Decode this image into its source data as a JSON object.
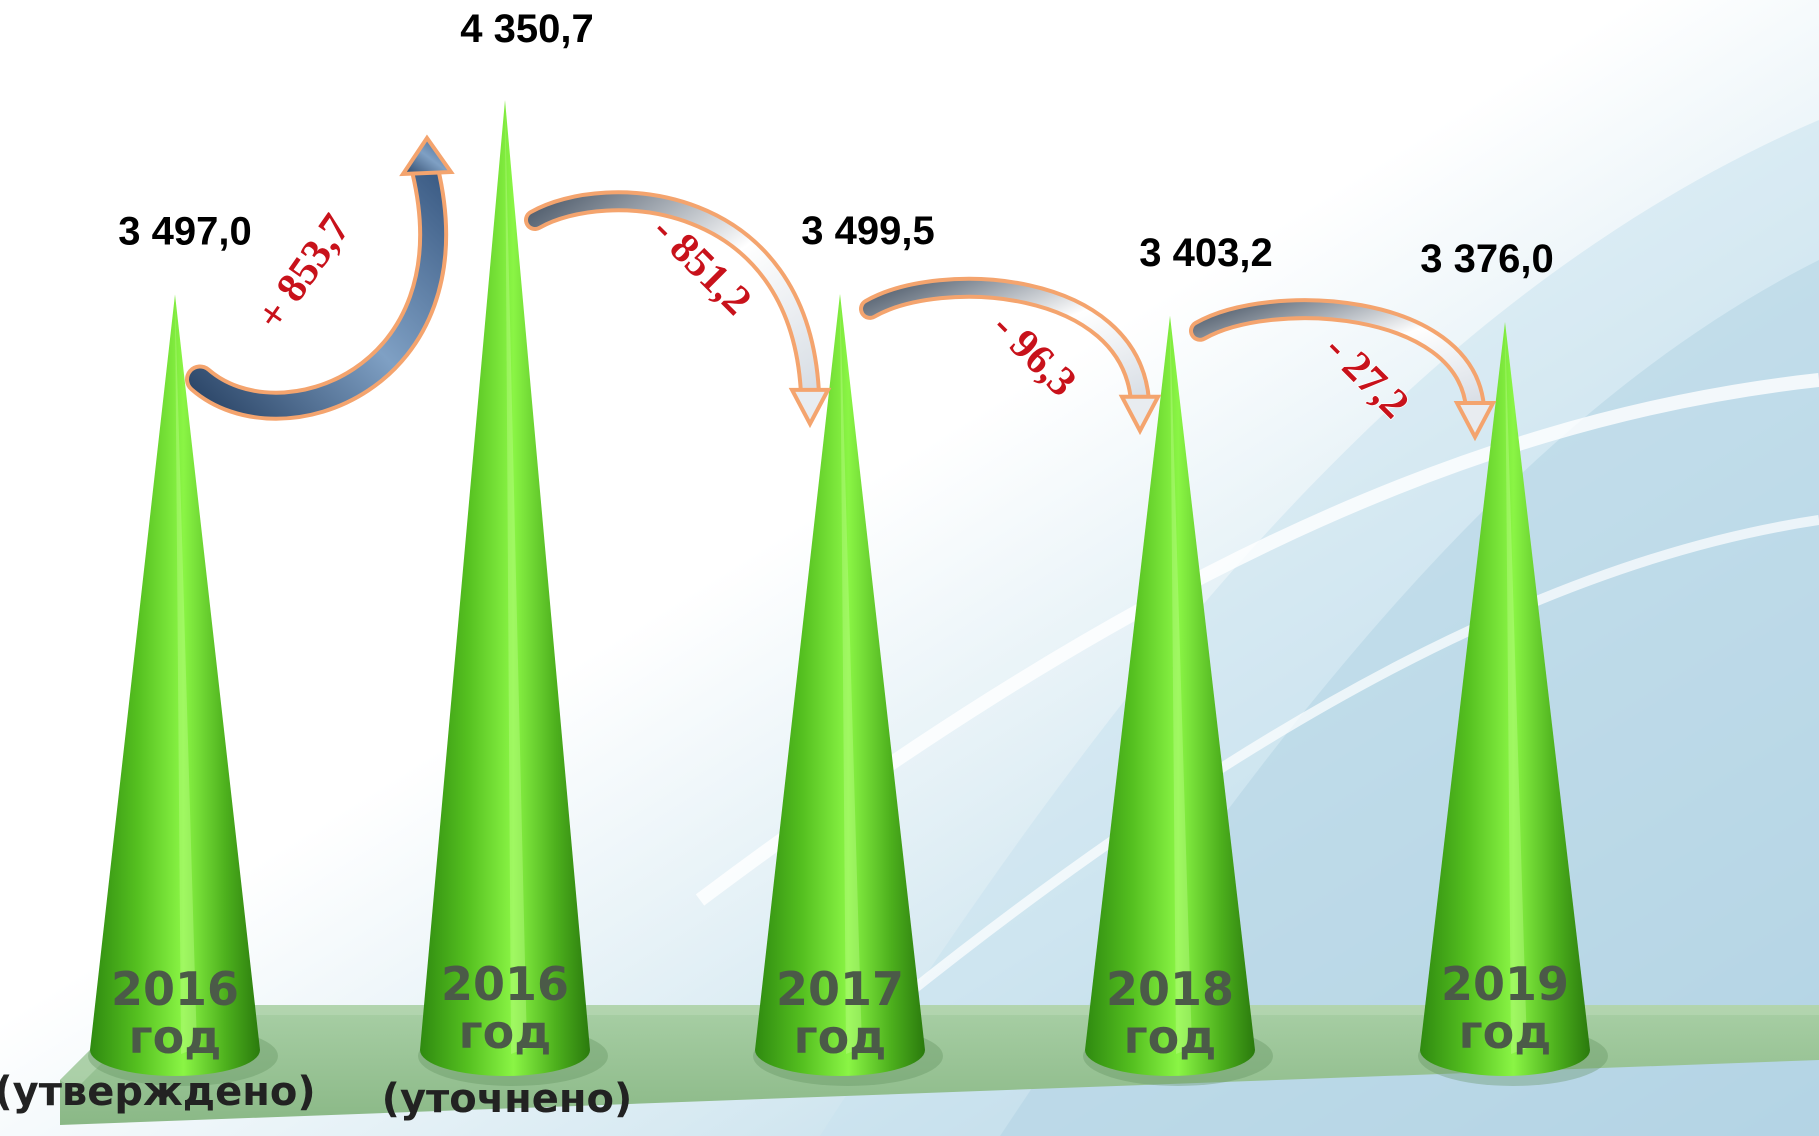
{
  "chart_data": {
    "type": "bar",
    "mark_shape": "cone",
    "categories": [
      "2016 год (утверждено)",
      "2016 год (уточнено)",
      "2017 год",
      "2018 год",
      "2019 год"
    ],
    "category_labels": [
      {
        "year": "2016",
        "unit": "год",
        "note": "(утверждено)"
      },
      {
        "year": "2016",
        "unit": "год",
        "note": "(уточнено)"
      },
      {
        "year": "2017",
        "unit": "год",
        "note": ""
      },
      {
        "year": "2018",
        "unit": "год",
        "note": ""
      },
      {
        "year": "2019",
        "unit": "год",
        "note": ""
      }
    ],
    "values": [
      3497.0,
      4350.7,
      3499.5,
      3403.2,
      3376.0
    ],
    "value_labels": [
      "3 497,0",
      "4 350,7",
      "3 499,5",
      "3 403,2",
      "3 376,0"
    ],
    "changes": [
      {
        "from": 0,
        "to": 1,
        "label": "+ 853,7",
        "direction": "up"
      },
      {
        "from": 1,
        "to": 2,
        "label": "- 851,2",
        "direction": "down"
      },
      {
        "from": 2,
        "to": 3,
        "label": "- 96,3",
        "direction": "down"
      },
      {
        "from": 3,
        "to": 4,
        "label": "- 27,2",
        "direction": "down"
      }
    ],
    "title": "",
    "xlabel": "",
    "ylabel": "",
    "grid": false,
    "legend": "none"
  },
  "colors": {
    "cone_dark": "#2f8a10",
    "cone_light": "#7ef03a",
    "floor": "#9cc59a",
    "arrow_up_body": "#5a7fa8",
    "arrow_outline": "#f4a46e",
    "change_text": "#c8121b",
    "background": "#eaf4f8"
  }
}
